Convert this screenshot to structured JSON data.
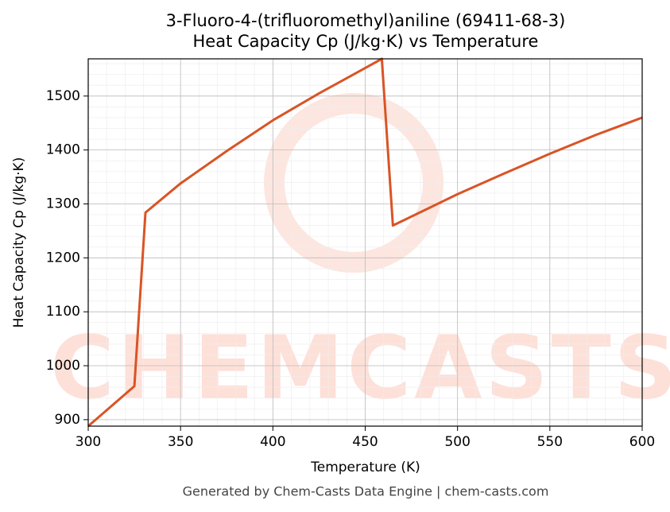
{
  "chart_data": {
    "type": "line",
    "title": "3-Fluoro-4-(trifluoromethyl)aniline (69411-68-3)",
    "subtitle": "Heat Capacity Cp (J/kg·K) vs Temperature",
    "x_label": "Temperature (K)",
    "y_label": "Heat Capacity Cp (J/kg·K)",
    "footer": "Generated by Chem-Casts Data Engine | chem-casts.com",
    "watermark": "CHEMCASTS",
    "x": [
      300,
      325,
      331,
      350,
      375,
      400,
      425,
      450,
      459,
      465,
      500,
      525,
      550,
      575,
      600
    ],
    "values": [
      888,
      962,
      1284,
      1338,
      1398,
      1455,
      1505,
      1552,
      1569,
      1260,
      1318,
      1356,
      1393,
      1428,
      1460
    ],
    "color": "#d95425",
    "xlim": [
      300,
      600
    ],
    "xticks": [
      300,
      350,
      400,
      450,
      500,
      550,
      600
    ],
    "ylim": [
      888,
      1569
    ],
    "yticks": [
      900,
      1000,
      1100,
      1200,
      1300,
      1400,
      1500
    ],
    "grid": true,
    "minor_grid": true
  }
}
